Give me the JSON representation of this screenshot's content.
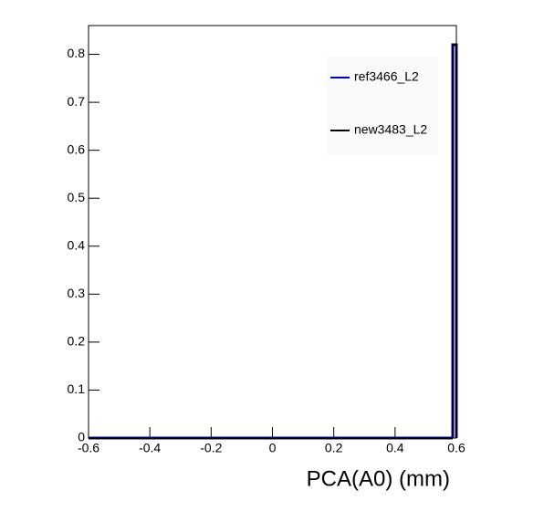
{
  "chart_data": {
    "type": "histogram",
    "xlabel": "PCA(A0) (mm)",
    "bins": [
      -0.6,
      0.588,
      0.6
    ],
    "series": [
      {
        "name": "ref3466_L2",
        "color": "#0000cc",
        "values": [
          0,
          0.82
        ]
      },
      {
        "name": "new3483_L2",
        "color": "#000000",
        "values": [
          0,
          0.82
        ]
      }
    ],
    "xlim": [
      -0.6,
      0.6
    ],
    "xticks": [
      -0.6,
      -0.4,
      -0.2,
      0,
      0.2,
      0.4,
      0.6
    ],
    "ylim": [
      0,
      0.86
    ],
    "yticks": [
      0,
      0.1,
      0.2,
      0.3,
      0.4,
      0.5,
      0.6,
      0.7,
      0.8
    ],
    "legend": "top-right",
    "grid": false
  }
}
